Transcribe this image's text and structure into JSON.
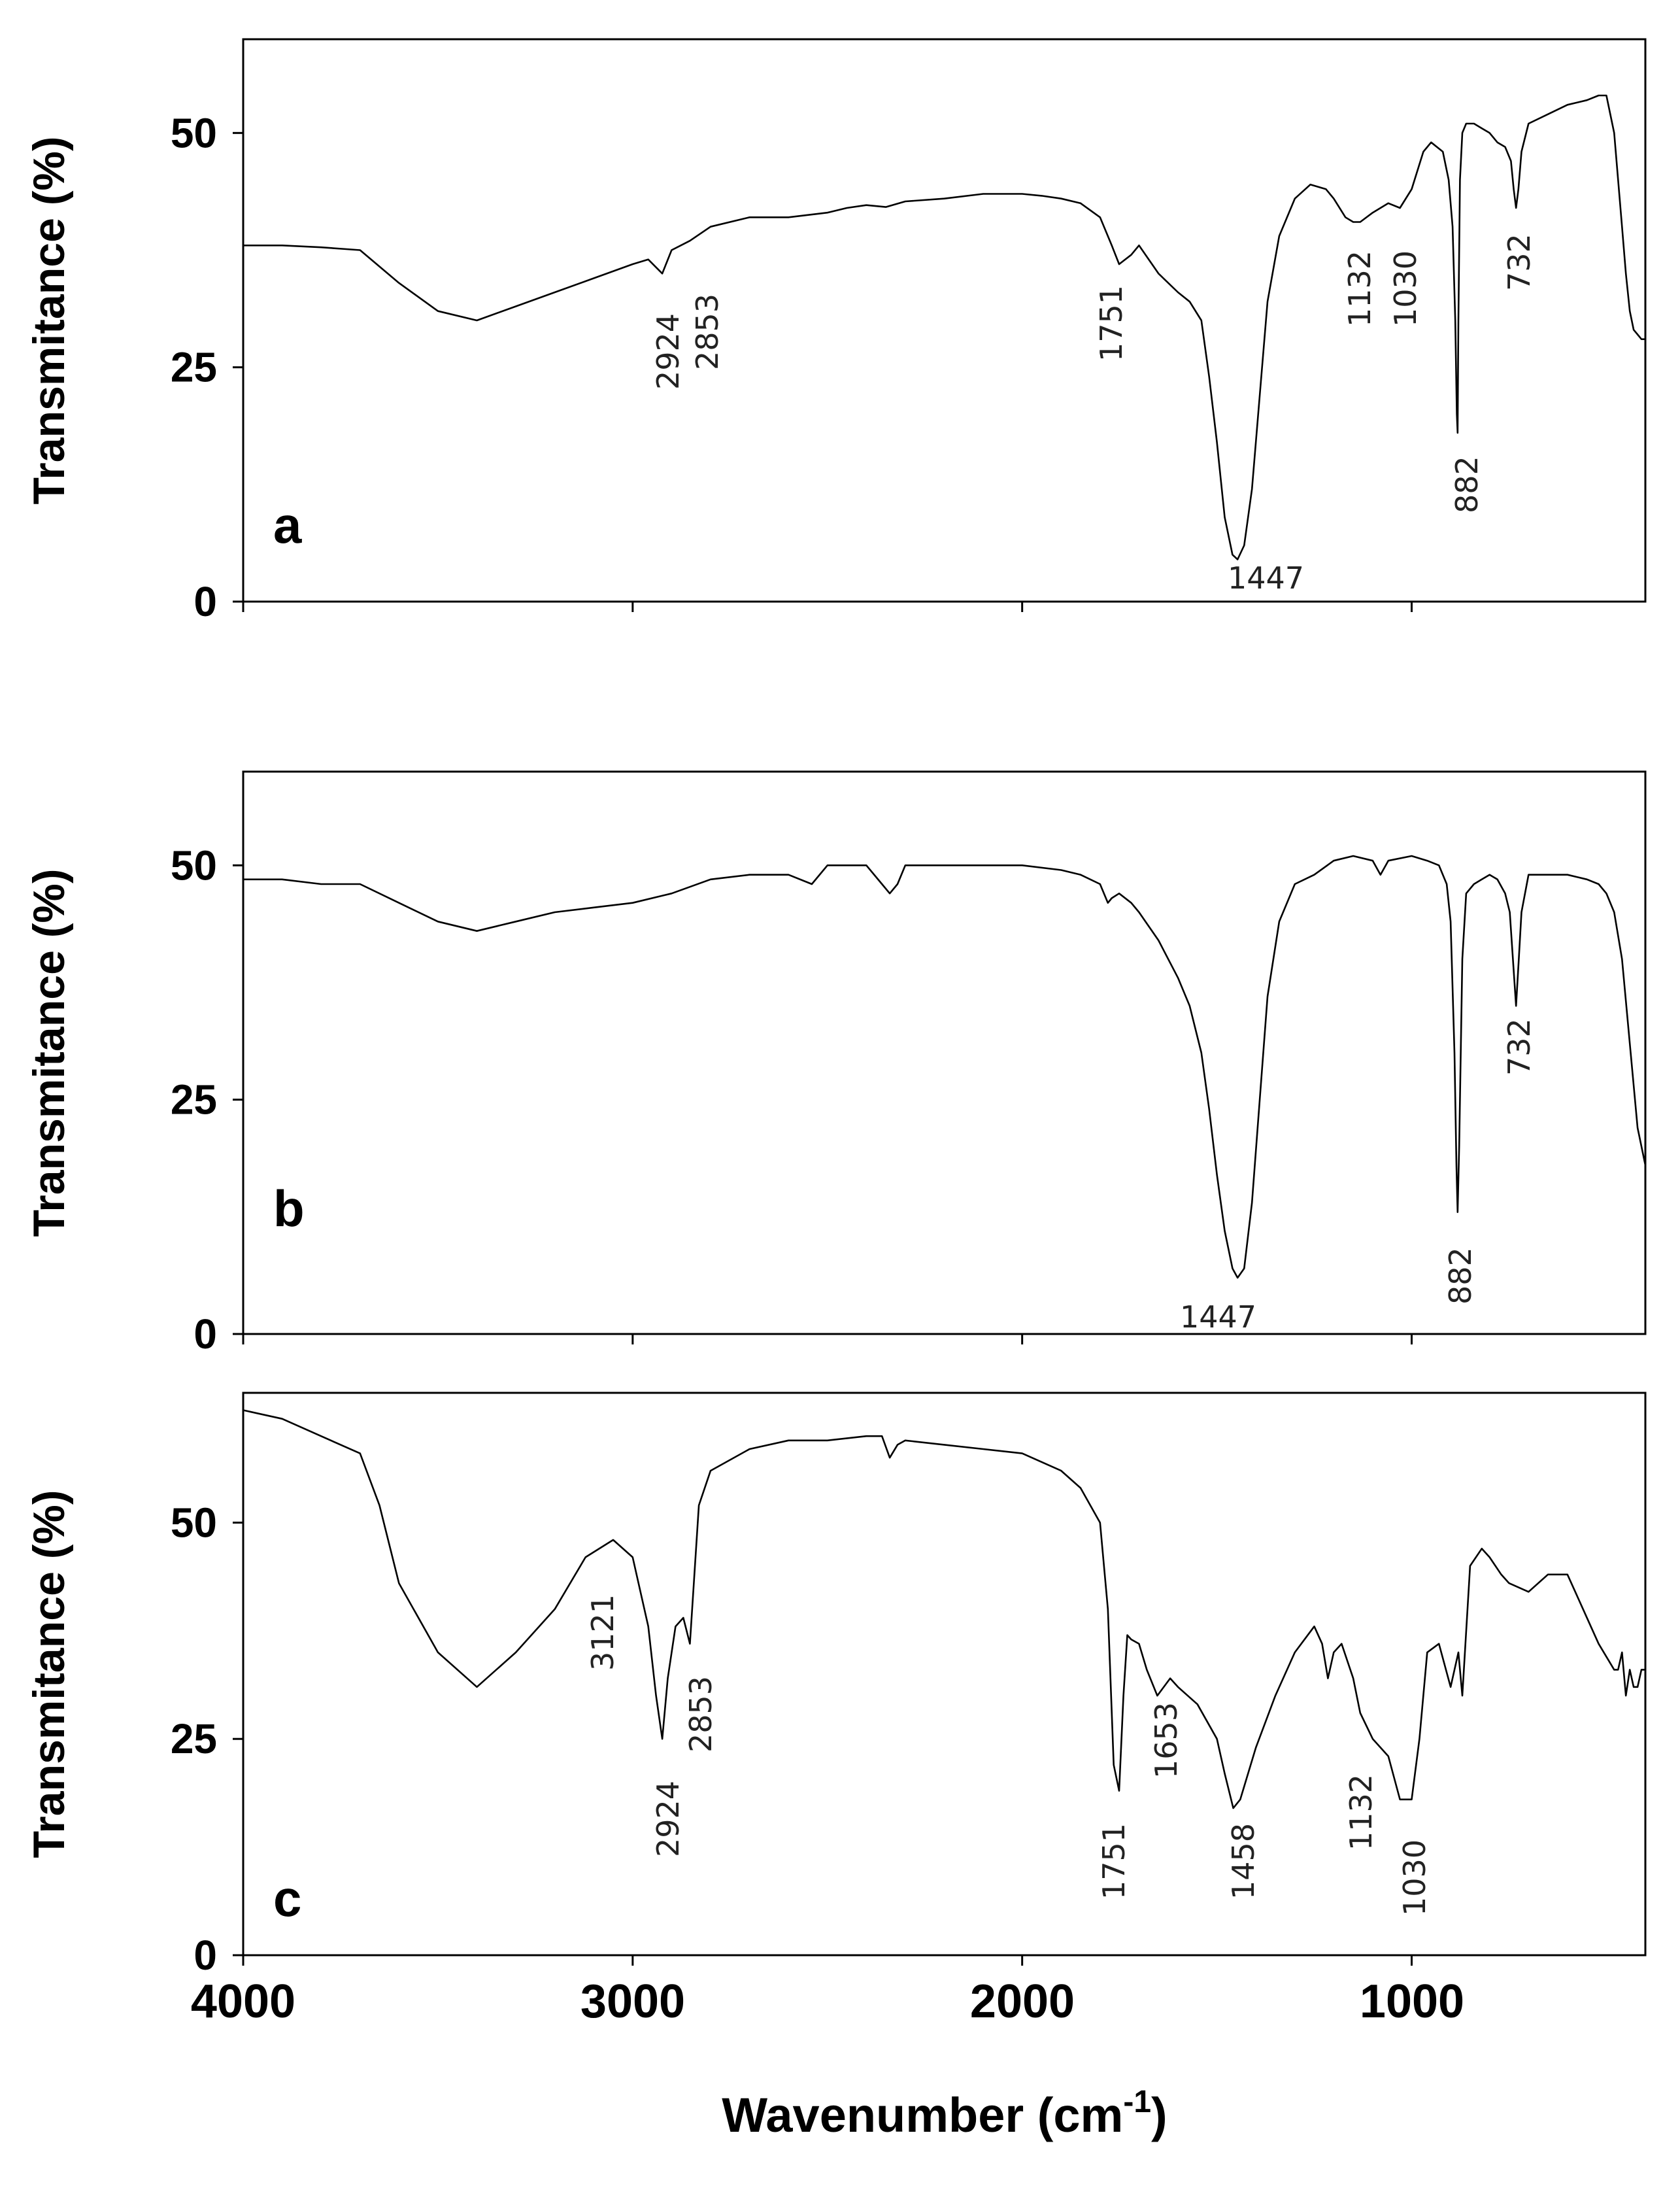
{
  "chart_data": [
    {
      "type": "line",
      "panel": "a",
      "xlabel": "Wavenumber (cm-1)",
      "ylabel": "Transmitance (%)",
      "xlim": [
        4000,
        400
      ],
      "ylim": [
        0,
        60
      ],
      "yticks": [
        0,
        25,
        50
      ],
      "x": [
        4000,
        3900,
        3800,
        3700,
        3600,
        3500,
        3400,
        3300,
        3200,
        3100,
        3000,
        2960,
        2924,
        2900,
        2853,
        2800,
        2700,
        2600,
        2500,
        2450,
        2400,
        2350,
        2300,
        2200,
        2100,
        2000,
        1950,
        1900,
        1850,
        1800,
        1770,
        1751,
        1720,
        1700,
        1650,
        1600,
        1570,
        1540,
        1520,
        1500,
        1480,
        1460,
        1447,
        1430,
        1410,
        1390,
        1370,
        1340,
        1300,
        1260,
        1220,
        1200,
        1170,
        1150,
        1132,
        1100,
        1060,
        1030,
        1000,
        970,
        950,
        920,
        905,
        895,
        888,
        884,
        882,
        880,
        876,
        870,
        860,
        840,
        820,
        800,
        780,
        760,
        745,
        738,
        732,
        726,
        718,
        700,
        650,
        600,
        550,
        520,
        500,
        480,
        470,
        460,
        450,
        440,
        430,
        420,
        410,
        400
      ],
      "values": [
        38,
        38,
        37.8,
        37.5,
        34,
        31,
        30,
        31.5,
        33,
        34.5,
        36,
        36.5,
        35,
        37.5,
        38.5,
        40,
        41,
        41,
        41.5,
        42,
        42.3,
        42.1,
        42.7,
        43,
        43.5,
        43.5,
        43.3,
        43,
        42.5,
        41,
        38,
        36,
        37,
        38,
        35,
        33,
        32,
        30,
        24,
        17,
        9,
        5,
        4.5,
        6,
        12,
        22,
        32,
        39,
        43,
        44.5,
        44,
        43,
        41,
        40.5,
        40.5,
        41.5,
        42.5,
        42,
        44,
        48,
        49,
        48,
        45,
        40,
        30,
        20,
        18,
        30,
        45,
        50,
        51,
        51,
        50.5,
        50,
        49,
        48.5,
        47,
        44,
        42,
        44,
        48,
        51,
        52,
        53,
        53.5,
        54,
        54,
        50,
        45,
        40,
        35,
        31,
        29,
        28.5,
        28,
        28
      ],
      "annotations": [
        "2924",
        "2853",
        "1751",
        "1447",
        "1132",
        "1030",
        "882",
        "732"
      ]
    },
    {
      "type": "line",
      "panel": "b",
      "xlabel": "Wavenumber (cm-1)",
      "ylabel": "Transmitance (%)",
      "xlim": [
        4000,
        400
      ],
      "ylim": [
        0,
        60
      ],
      "yticks": [
        0,
        25,
        50
      ],
      "x": [
        4000,
        3900,
        3800,
        3700,
        3600,
        3500,
        3400,
        3300,
        3200,
        3100,
        3000,
        2900,
        2800,
        2700,
        2600,
        2540,
        2500,
        2450,
        2400,
        2360,
        2340,
        2320,
        2300,
        2200,
        2100,
        2000,
        1900,
        1850,
        1800,
        1780,
        1770,
        1751,
        1720,
        1700,
        1650,
        1600,
        1570,
        1540,
        1520,
        1500,
        1480,
        1460,
        1447,
        1430,
        1410,
        1390,
        1370,
        1340,
        1300,
        1250,
        1200,
        1150,
        1100,
        1080,
        1060,
        1000,
        960,
        930,
        910,
        900,
        890,
        885,
        882,
        878,
        870,
        860,
        840,
        820,
        800,
        780,
        760,
        748,
        740,
        732,
        725,
        718,
        700,
        650,
        600,
        550,
        520,
        500,
        480,
        460,
        440,
        420,
        400
      ],
      "values": [
        48.5,
        48.5,
        48,
        48,
        46,
        44,
        43,
        44,
        45,
        45.5,
        46,
        47,
        48.5,
        49,
        49,
        48,
        50,
        50,
        50,
        48,
        47,
        48,
        50,
        50,
        50,
        50,
        49.5,
        49,
        48,
        46,
        46.5,
        47,
        46,
        45,
        42,
        38,
        35,
        30,
        24,
        17,
        11,
        7,
        6,
        7,
        14,
        25,
        36,
        44,
        48,
        49,
        50.5,
        51,
        50.5,
        49,
        50.5,
        51,
        50.5,
        50,
        48,
        44,
        30,
        18,
        13,
        20,
        40,
        47,
        48,
        48.5,
        49,
        48.5,
        47,
        45,
        40,
        35,
        40,
        45,
        49,
        49,
        49,
        48.5,
        48,
        47,
        45,
        40,
        31,
        22,
        18
      ],
      "annotations": [
        "1447",
        "882",
        "732"
      ]
    },
    {
      "type": "line",
      "panel": "c",
      "xlabel": "Wavenumber (cm-1)",
      "ylabel": "Transmitance (%)",
      "xlim": [
        4000,
        400
      ],
      "ylim": [
        0,
        65
      ],
      "yticks": [
        0,
        25,
        50
      ],
      "x": [
        4000,
        3900,
        3800,
        3700,
        3650,
        3600,
        3500,
        3400,
        3300,
        3200,
        3121,
        3050,
        3000,
        2960,
        2940,
        2924,
        2910,
        2890,
        2870,
        2853,
        2830,
        2800,
        2700,
        2600,
        2500,
        2400,
        2360,
        2340,
        2320,
        2300,
        2200,
        2100,
        2000,
        1900,
        1850,
        1800,
        1780,
        1765,
        1751,
        1740,
        1730,
        1720,
        1700,
        1680,
        1653,
        1620,
        1600,
        1550,
        1500,
        1480,
        1458,
        1440,
        1400,
        1350,
        1300,
        1250,
        1230,
        1215,
        1200,
        1180,
        1150,
        1132,
        1100,
        1060,
        1030,
        1000,
        980,
        960,
        930,
        900,
        880,
        870,
        850,
        820,
        800,
        770,
        750,
        700,
        650,
        600,
        560,
        520,
        480,
        470,
        460,
        450,
        440,
        430,
        420,
        410,
        400
      ],
      "values": [
        63,
        62,
        60,
        58,
        52,
        43,
        35,
        31,
        35,
        40,
        46,
        48,
        46,
        38,
        30,
        25,
        32,
        38,
        39,
        36,
        52,
        56,
        58.5,
        59.5,
        59.5,
        60,
        60,
        57.5,
        59,
        59.5,
        59,
        58.5,
        58,
        56,
        54,
        50,
        40,
        22,
        19,
        30,
        37,
        36.5,
        36,
        33,
        30,
        32,
        31,
        29,
        25,
        21,
        17,
        18,
        24,
        30,
        35,
        38,
        36,
        32,
        35,
        36,
        32,
        28,
        25,
        23,
        18,
        18,
        25,
        35,
        36,
        31,
        35,
        30,
        45,
        47,
        46,
        44,
        43,
        42,
        44,
        44,
        40,
        36,
        33,
        33,
        35,
        30,
        33,
        31,
        31,
        33,
        33
      ],
      "annotations": [
        "3121",
        "2924",
        "2853",
        "1751",
        "1653",
        "1458",
        "1132",
        "1030"
      ]
    }
  ],
  "panels": [
    {
      "letter": "a",
      "y_label": "Transmitance (%)",
      "y_ticks": [
        "0",
        "25",
        "50"
      ]
    },
    {
      "letter": "b",
      "y_label": "Transmitance (%)",
      "y_ticks": [
        "0",
        "25",
        "50"
      ]
    },
    {
      "letter": "c",
      "y_label": "Transmitance (%)",
      "y_ticks": [
        "0",
        "25",
        "50"
      ]
    }
  ],
  "x_axis": {
    "ticks": [
      "4000",
      "3000",
      "2000",
      "1000"
    ],
    "label_main": "Wavenumber (cm",
    "label_sup": "-1",
    "label_close": ")"
  }
}
